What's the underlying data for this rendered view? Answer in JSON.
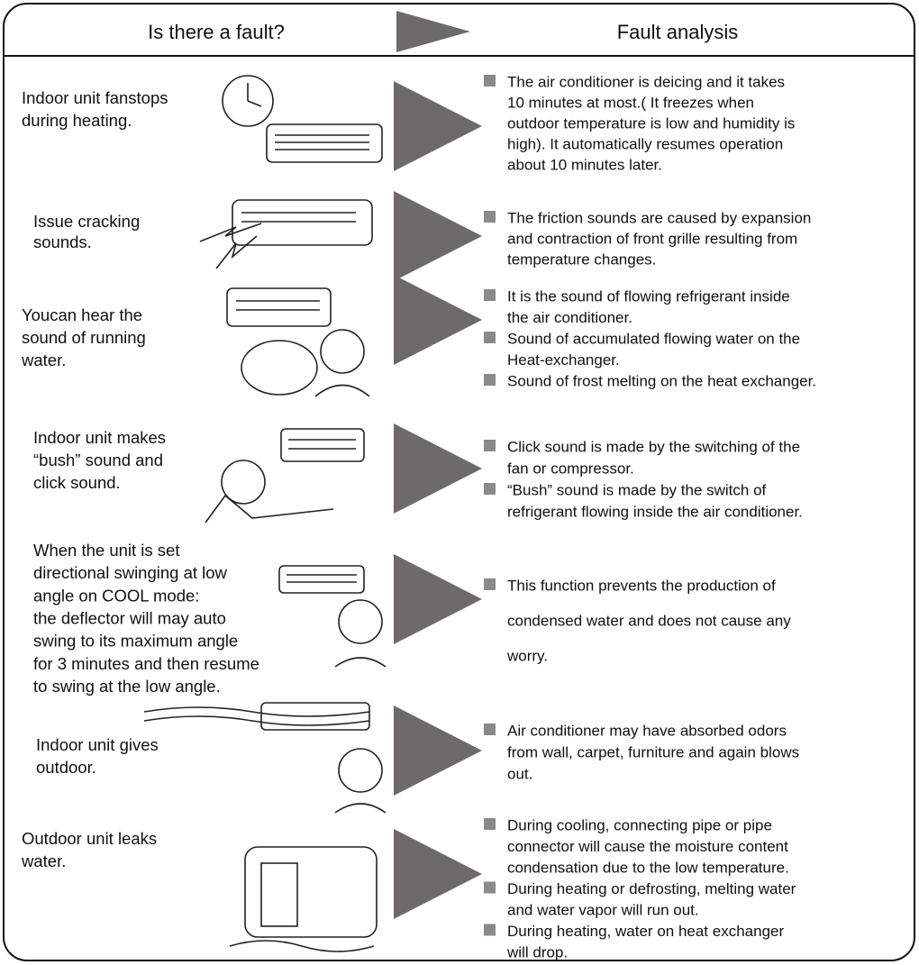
{
  "header": {
    "left": "Is there a fault?",
    "right": "Fault analysis"
  },
  "rows": [
    {
      "fault": [
        "Indoor unit fanstops",
        "during heating."
      ],
      "analysis": [
        [
          "The air conditioner is deicing and it takes",
          "10 minutes at most.( It freezes when",
          "outdoor temperature is low and humidity is",
          "high). It automatically resumes operation",
          "about 10 minutes later."
        ]
      ]
    },
    {
      "fault": [
        "Issue cracking",
        "sounds."
      ],
      "analysis": [
        [
          "The friction sounds are caused by expansion",
          "and contraction of front grille resulting from",
          "temperature changes."
        ]
      ]
    },
    {
      "fault": [
        "Youcan hear the",
        "sound of running",
        "water."
      ],
      "analysis": [
        [
          "It is the sound of flowing refrigerant inside",
          "the air conditioner."
        ],
        [
          "Sound of accumulated flowing water on the",
          "Heat-exchanger."
        ],
        [
          "Sound of frost melting on the heat exchanger."
        ]
      ]
    },
    {
      "fault": [
        "Indoor unit makes",
        "“bush” sound and",
        "click sound."
      ],
      "analysis": [
        [
          "Click sound is made by the switching of the",
          "fan or compressor."
        ],
        [
          "“Bush” sound is made by the switch of",
          "refrigerant flowing inside the air conditioner."
        ]
      ]
    },
    {
      "fault": [
        "When the unit is set",
        "directional swinging at low",
        "angle on COOL mode:",
        "the deflector will may auto",
        "swing to its maximum angle",
        "for 3 minutes and then resume",
        "to swing at the low angle."
      ],
      "analysis": [
        [
          "This function prevents the production of",
          "condensed water and does not cause any",
          "worry."
        ]
      ]
    },
    {
      "fault": [
        "Indoor unit gives",
        "outdoor."
      ],
      "analysis": [
        [
          "Air conditioner may have absorbed odors",
          "from wall, carpet, furniture and again blows",
          "out."
        ]
      ]
    },
    {
      "fault": [
        "Outdoor unit leaks",
        "water."
      ],
      "analysis": [
        [
          "During cooling, connecting pipe or pipe",
          "connector will cause the moisture content",
          "condensation due to the low temperature."
        ],
        [
          "During heating or defrosting, melting water",
          "and water vapor will run out."
        ],
        [
          "During heating, water on heat exchanger",
          "will drop."
        ]
      ]
    }
  ]
}
